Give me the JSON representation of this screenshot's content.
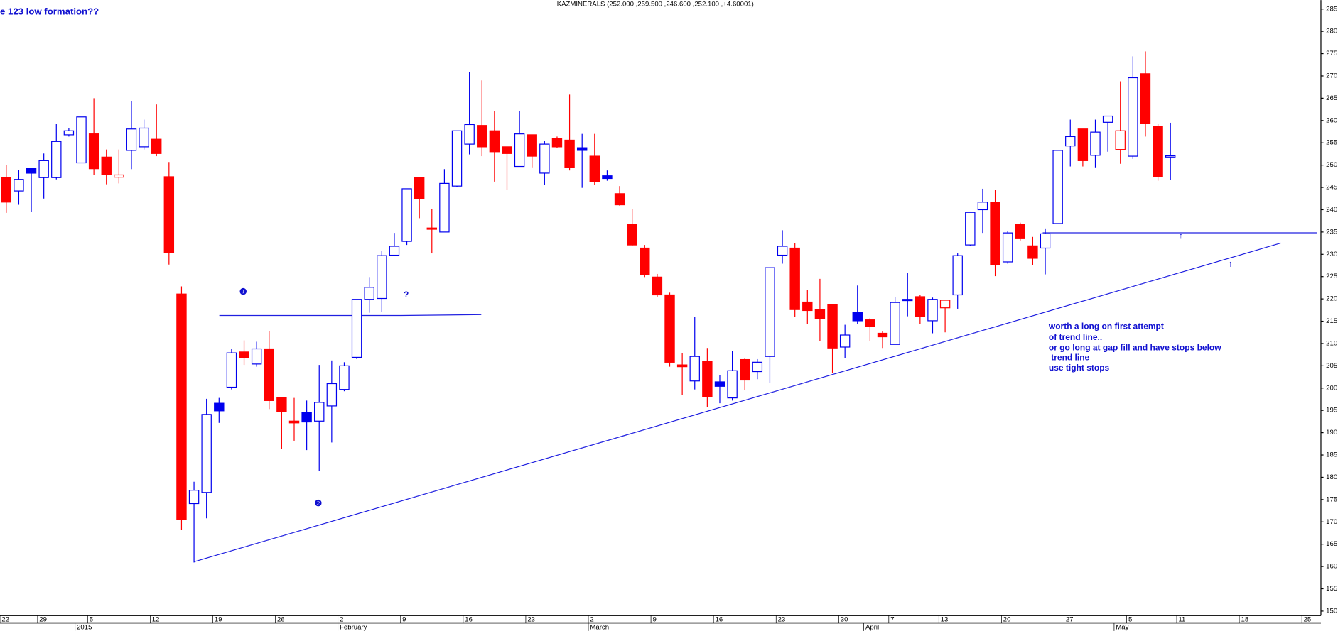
{
  "chart_data": {
    "type": "candlestick",
    "title": "KAZMINERALS (252.000 ,259.500 ,246.600 ,252.100 ,+4.60001)",
    "heading": "e 123 low formation??",
    "notes": [
      "worth a long on first attempt",
      "of trend line..",
      "or go long at gap fill and have stops below",
      " trend line",
      "use tight stops"
    ],
    "markers": [
      "❶",
      "❷",
      "❸",
      "?",
      "↑",
      "↑"
    ],
    "colors": {
      "up": "#0000ee",
      "down": "#ff0000"
    },
    "categories": [
      "22",
      null,
      null,
      "29",
      null,
      null,
      null,
      "5",
      null,
      null,
      null,
      null,
      "12",
      null,
      null,
      null,
      null,
      "19",
      null,
      null,
      null,
      null,
      "26",
      null,
      null,
      null,
      null,
      "2",
      null,
      null,
      null,
      null,
      "9",
      null,
      null,
      null,
      null,
      "16",
      null,
      null,
      null,
      null,
      "23",
      null,
      null,
      null,
      null,
      "2",
      null,
      null,
      null,
      null,
      "9",
      null,
      null,
      null,
      null,
      "16",
      null,
      null,
      null,
      null,
      "23",
      null,
      null,
      null,
      null,
      "30",
      null,
      null,
      null,
      "7",
      null,
      null,
      null,
      "13",
      null,
      null,
      null,
      null,
      "20",
      null,
      null,
      null,
      null,
      "27",
      null,
      null,
      null,
      null,
      "5",
      null,
      null,
      null,
      "11",
      null,
      null,
      null,
      null,
      "18",
      null,
      null,
      null,
      null,
      "25"
    ],
    "periods": [
      null,
      null,
      null,
      null,
      null,
      null,
      "2015",
      null,
      null,
      null,
      null,
      null,
      null,
      null,
      null,
      null,
      null,
      null,
      null,
      null,
      null,
      null,
      null,
      null,
      null,
      null,
      null,
      "February",
      null,
      null,
      null,
      null,
      null,
      null,
      null,
      null,
      null,
      null,
      null,
      null,
      null,
      null,
      null,
      null,
      null,
      null,
      null,
      "March",
      null,
      null,
      null,
      null,
      null,
      null,
      null,
      null,
      null,
      null,
      null,
      null,
      null,
      null,
      null,
      null,
      null,
      null,
      null,
      null,
      null,
      "April",
      null,
      null,
      null,
      null,
      null,
      null,
      null,
      null,
      null,
      null,
      null,
      null,
      null,
      null,
      null,
      null,
      null,
      null,
      null,
      "May",
      null,
      null,
      null,
      null,
      null,
      null,
      null,
      null,
      null,
      null,
      null,
      null,
      null,
      null,
      null
    ],
    "open": [
      247.2,
      244.2,
      249.3,
      247.2,
      247.2,
      256.8,
      250.5,
      257,
      251.8,
      247.3,
      253.3,
      254.1,
      255.8,
      247.4,
      221.1,
      174.1,
      176.6,
      196.6,
      200.2,
      208.1,
      205.4,
      208.8,
      197.8,
      192.6,
      194.5,
      192.6,
      196,
      199.7,
      206.9,
      219.9,
      220.1,
      229.8,
      232.9,
      247.2,
      235.9,
      235,
      245.3,
      254.7,
      258.9,
      257.7,
      254.1,
      249.7,
      256.8,
      248.2,
      256,
      255.6,
      253.9,
      252,
      247.6,
      243.6,
      236.7,
      231.4,
      224.9,
      220.9,
      205.2,
      201.6,
      206,
      201.4,
      197.8,
      206.4,
      203.7,
      207.1,
      229.8,
      231.4,
      219.3,
      217.6,
      218.8,
      209.2,
      217,
      215.3,
      212.3,
      209.8,
      219.7,
      220.5,
      215.1,
      218,
      220.9,
      232.1,
      240,
      241.7,
      228.3,
      236.7,
      231.9,
      231.4,
      236.9,
      254.3,
      258.1,
      252.2,
      259.6,
      253.5,
      252,
      270.5,
      258.7,
      252,
      null,
      null,
      null,
      null,
      null,
      null,
      null,
      null,
      null,
      null,
      null
    ],
    "high": [
      250,
      248.9,
      249.3,
      252.6,
      259.3,
      258.3,
      260.8,
      265,
      253.5,
      253.5,
      264.4,
      260.2,
      263.6,
      250.7,
      222.8,
      179,
      197.6,
      197.8,
      208.8,
      210.7,
      210.4,
      212.8,
      197.8,
      197.8,
      197.2,
      205.2,
      206.2,
      205.8,
      219.9,
      224.9,
      230.8,
      234.8,
      244.7,
      247.2,
      240.2,
      249.1,
      257.7,
      270.9,
      269,
      262.1,
      254.1,
      262.1,
      256.8,
      255.4,
      256.4,
      265.8,
      257,
      257,
      248.8,
      245.3,
      240.2,
      232.1,
      225.6,
      221.4,
      207.9,
      215.9,
      209,
      202.9,
      208.3,
      206.7,
      206.5,
      227,
      235.4,
      232.5,
      222,
      224.5,
      218.8,
      214.2,
      223,
      215.7,
      212.8,
      220.5,
      225.8,
      220.9,
      220.3,
      219.7,
      230.2,
      239.6,
      244.7,
      244.4,
      235.2,
      237.1,
      233.9,
      235.8,
      253.3,
      260.2,
      258.1,
      260.2,
      261,
      268.8,
      274.4,
      275.5,
      259.3,
      259.5,
      null,
      null,
      null,
      null,
      null,
      null,
      null,
      null,
      null,
      null,
      null
    ],
    "low": [
      239.3,
      241.1,
      239.5,
      242.5,
      246.8,
      256.4,
      250.5,
      247.8,
      245.7,
      245.9,
      249.1,
      253.5,
      252,
      227.7,
      168.3,
      160.9,
      170.8,
      192.2,
      199.7,
      205.2,
      204.8,
      195.3,
      186.3,
      188.2,
      186.1,
      181.5,
      187.8,
      199.3,
      206.5,
      216.9,
      217,
      229.8,
      232.1,
      238.1,
      230.2,
      235,
      245.1,
      252.4,
      252,
      246.3,
      244.4,
      249.7,
      249.5,
      245.5,
      253.9,
      248.8,
      244.9,
      245.5,
      246.5,
      240.9,
      231.9,
      224.9,
      220.5,
      204.8,
      198.5,
      199.7,
      195.7,
      196.6,
      197.2,
      199.5,
      202,
      201.2,
      227.9,
      216,
      214.4,
      210.6,
      203.3,
      206.7,
      214.4,
      210.6,
      209,
      209.8,
      216.1,
      214.4,
      212.3,
      212.5,
      217.8,
      231.8,
      234.8,
      225.1,
      227.9,
      233.1,
      227.6,
      225.5,
      236.9,
      249.7,
      249.7,
      249.5,
      253,
      250.3,
      251.4,
      256.4,
      246.5,
      246.6,
      null,
      null,
      null,
      null,
      null,
      null,
      null,
      null,
      null,
      null,
      null
    ],
    "close": [
      241.7,
      246.8,
      248.2,
      251,
      255.3,
      257.7,
      260.8,
      249.2,
      247.9,
      247.8,
      258.1,
      258.3,
      252.6,
      230.4,
      170.6,
      177.1,
      194.1,
      194.9,
      207.9,
      206.9,
      208.8,
      197.2,
      194.7,
      192.2,
      192.4,
      196.8,
      201,
      205,
      219.9,
      222.6,
      229.7,
      231.8,
      244.7,
      242.5,
      235.7,
      245.9,
      257.7,
      259.1,
      254.1,
      253,
      252.6,
      257,
      252,
      254.7,
      254.1,
      249.5,
      253.3,
      246.3,
      247,
      241.1,
      232.1,
      225.5,
      220.9,
      205.8,
      204.8,
      207.1,
      198.1,
      200.4,
      203.9,
      201.8,
      205.8,
      227,
      231.8,
      217.6,
      217.4,
      215.5,
      209,
      211.9,
      215.1,
      213.8,
      211.5,
      219.2,
      219.9,
      216.1,
      219.9,
      219.7,
      229.7,
      239.4,
      241.7,
      227.7,
      234.8,
      233.5,
      229.1,
      234.6,
      253.3,
      256.4,
      251,
      257.4,
      261,
      257.7,
      269.6,
      259.3,
      247.4,
      252.1,
      null,
      null,
      null,
      null,
      null,
      null,
      null,
      null,
      null,
      null,
      null
    ],
    "ylim": [
      149,
      287
    ],
    "yticks": [
      150,
      155,
      160,
      165,
      170,
      175,
      180,
      185,
      190,
      195,
      200,
      205,
      210,
      215,
      220,
      225,
      230,
      235,
      240,
      245,
      250,
      255,
      260,
      265,
      270,
      275,
      280,
      285
    ]
  }
}
